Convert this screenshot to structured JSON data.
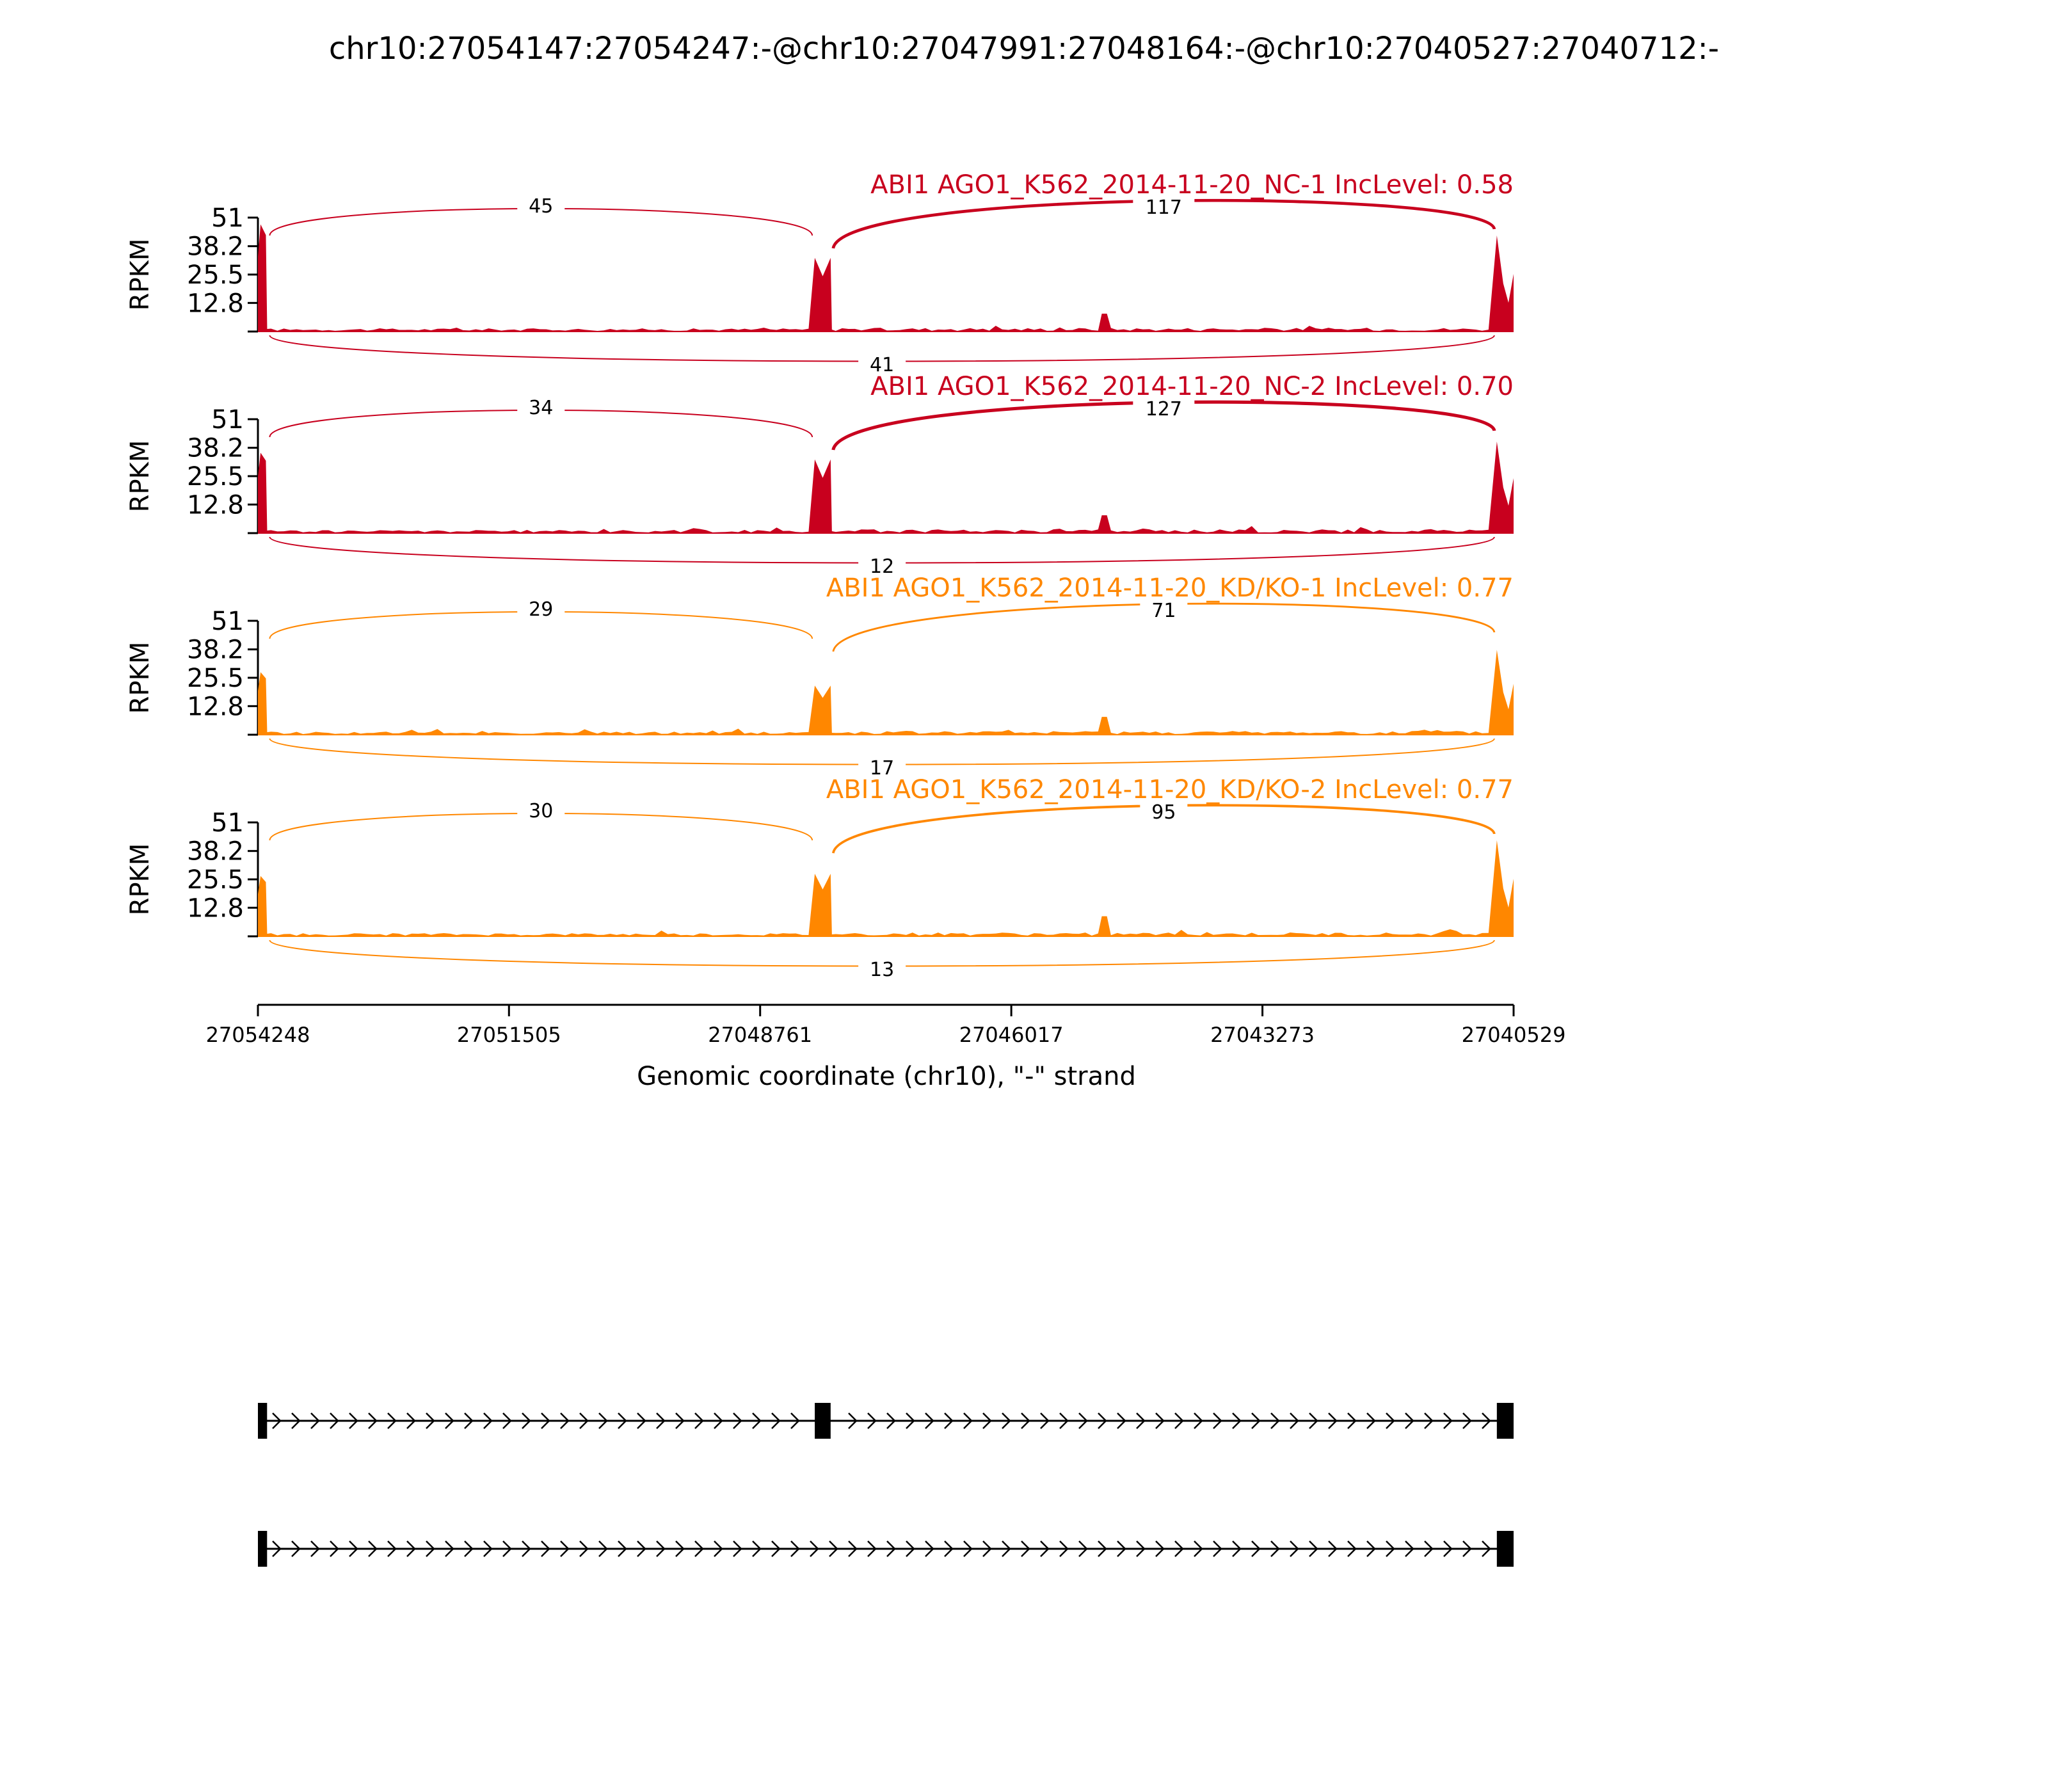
{
  "chart_data": {
    "type": "area",
    "title": "chr10:27054147:27054247:-@chr10:27047991:27048164:-@chr10:27040527:27040712:-",
    "xlabel": "Genomic coordinate (chr10), \"-\" strand",
    "ylabel": "RPKM",
    "xlim": [
      27054248,
      27040529
    ],
    "x_ticks": [
      "27054248",
      "27051505",
      "27048761",
      "27046017",
      "27043273",
      "27040529"
    ],
    "y_ticks": [
      "51",
      "38.2",
      "25.5",
      "12.8"
    ],
    "ylim": [
      0,
      51
    ],
    "exons": [
      {
        "start": 27054247,
        "end": 27054147
      },
      {
        "start": 27048164,
        "end": 27047991
      },
      {
        "start": 27040712,
        "end": 27040529
      }
    ],
    "series": [
      {
        "name": "ABI1 AGO1_K562_2014-11-20_NC-1 IncLevel: 0.58",
        "color": "#c8001e",
        "exon_heights": [
          48,
          33,
          43
        ],
        "bump_height": 8,
        "junctions": [
          {
            "label": "45",
            "from": 27054147,
            "to": 27048164,
            "side": "above"
          },
          {
            "label": "117",
            "from": 27047991,
            "to": 27040712,
            "side": "above"
          },
          {
            "label": "41",
            "from": 27054147,
            "to": 27040712,
            "side": "below"
          }
        ]
      },
      {
        "name": "ABI1 AGO1_K562_2014-11-20_NC-2 IncLevel: 0.70",
        "color": "#c8001e",
        "exon_heights": [
          36,
          33,
          41
        ],
        "bump_height": 8,
        "junctions": [
          {
            "label": "34",
            "from": 27054147,
            "to": 27048164,
            "side": "above"
          },
          {
            "label": "127",
            "from": 27047991,
            "to": 27040712,
            "side": "above"
          },
          {
            "label": "12",
            "from": 27054147,
            "to": 27040712,
            "side": "below"
          }
        ]
      },
      {
        "name": "ABI1 AGO1_K562_2014-11-20_KD/KO-1 IncLevel: 0.77",
        "color": "#ff8700",
        "exon_heights": [
          28,
          22,
          38
        ],
        "bump_height": 8,
        "junctions": [
          {
            "label": "29",
            "from": 27054147,
            "to": 27048164,
            "side": "above"
          },
          {
            "label": "71",
            "from": 27047991,
            "to": 27040712,
            "side": "above"
          },
          {
            "label": "17",
            "from": 27054147,
            "to": 27040712,
            "side": "below"
          }
        ]
      },
      {
        "name": "ABI1 AGO1_K562_2014-11-20_KD/KO-2 IncLevel: 0.77",
        "color": "#ff8700",
        "exon_heights": [
          27,
          28,
          43
        ],
        "bump_height": 9,
        "junctions": [
          {
            "label": "30",
            "from": 27054147,
            "to": 27048164,
            "side": "above"
          },
          {
            "label": "95",
            "from": 27047991,
            "to": 27040712,
            "side": "above"
          },
          {
            "label": "13",
            "from": 27054147,
            "to": 27040712,
            "side": "below"
          }
        ]
      }
    ],
    "isoforms": [
      {
        "exons": [
          0,
          1,
          2
        ]
      },
      {
        "exons": [
          0,
          2
        ]
      }
    ]
  }
}
